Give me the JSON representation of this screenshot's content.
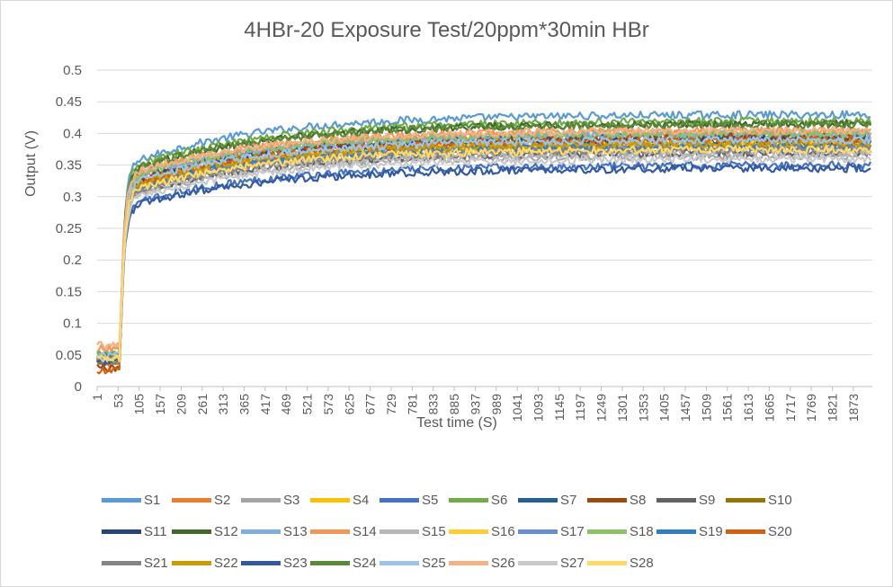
{
  "chart_data": {
    "type": "line",
    "title": "4HBr-20 Exposure Test/20ppm*30min HBr",
    "xlabel": "Test time (S)",
    "ylabel": "Output (V)",
    "ylim": [
      0,
      0.5
    ],
    "yticks": [
      "0",
      "0.05",
      "0.1",
      "0.15",
      "0.2",
      "0.25",
      "0.3",
      "0.35",
      "0.4",
      "0.45",
      "0.5"
    ],
    "x_tick_labels": [
      "1",
      "53",
      "105",
      "157",
      "209",
      "261",
      "313",
      "365",
      "417",
      "469",
      "521",
      "573",
      "625",
      "677",
      "729",
      "781",
      "833",
      "885",
      "937",
      "989",
      "1041",
      "1093",
      "1145",
      "1197",
      "1249",
      "1301",
      "1353",
      "1405",
      "1457",
      "1509",
      "1561",
      "1613",
      "1665",
      "1717",
      "1769",
      "1821",
      "1873"
    ],
    "x_range": [
      1,
      1920
    ],
    "exposure_start": 58,
    "grid": true,
    "legend_position": "bottom",
    "series": [
      {
        "name": "S1",
        "color": "#5B9BD5",
        "baseline": 0.05,
        "plateau": 0.43
      },
      {
        "name": "S2",
        "color": "#ED7D31",
        "baseline": 0.035,
        "plateau": 0.4
      },
      {
        "name": "S3",
        "color": "#A5A5A5",
        "baseline": 0.045,
        "plateau": 0.365
      },
      {
        "name": "S4",
        "color": "#FFC000",
        "baseline": 0.045,
        "plateau": 0.38
      },
      {
        "name": "S5",
        "color": "#4472C4",
        "baseline": 0.04,
        "plateau": 0.35
      },
      {
        "name": "S6",
        "color": "#70AD47",
        "baseline": 0.05,
        "plateau": 0.42
      },
      {
        "name": "S7",
        "color": "#255E91",
        "baseline": 0.045,
        "plateau": 0.395
      },
      {
        "name": "S8",
        "color": "#9E480E",
        "baseline": 0.03,
        "plateau": 0.395
      },
      {
        "name": "S9",
        "color": "#636363",
        "baseline": 0.04,
        "plateau": 0.37
      },
      {
        "name": "S10",
        "color": "#997300",
        "baseline": 0.04,
        "plateau": 0.385
      },
      {
        "name": "S11",
        "color": "#264478",
        "baseline": 0.04,
        "plateau": 0.39
      },
      {
        "name": "S12",
        "color": "#43682B",
        "baseline": 0.045,
        "plateau": 0.415
      },
      {
        "name": "S13",
        "color": "#7CAFDD",
        "baseline": 0.05,
        "plateau": 0.4
      },
      {
        "name": "S14",
        "color": "#F1975A",
        "baseline": 0.06,
        "plateau": 0.405
      },
      {
        "name": "S15",
        "color": "#B7B7B7",
        "baseline": 0.045,
        "plateau": 0.37
      },
      {
        "name": "S16",
        "color": "#FFCD33",
        "baseline": 0.045,
        "plateau": 0.385
      },
      {
        "name": "S17",
        "color": "#698ED0",
        "baseline": 0.045,
        "plateau": 0.38
      },
      {
        "name": "S18",
        "color": "#8CC168",
        "baseline": 0.05,
        "plateau": 0.4
      },
      {
        "name": "S19",
        "color": "#327DC2",
        "baseline": 0.045,
        "plateau": 0.38
      },
      {
        "name": "S20",
        "color": "#D26012",
        "baseline": 0.025,
        "plateau": 0.39
      },
      {
        "name": "S21",
        "color": "#848484",
        "baseline": 0.04,
        "plateau": 0.375
      },
      {
        "name": "S22",
        "color": "#CC9A00",
        "baseline": 0.045,
        "plateau": 0.385
      },
      {
        "name": "S23",
        "color": "#335AA1",
        "baseline": 0.04,
        "plateau": 0.345
      },
      {
        "name": "S24",
        "color": "#5A8A39",
        "baseline": 0.05,
        "plateau": 0.415
      },
      {
        "name": "S25",
        "color": "#9DC3E6",
        "baseline": 0.05,
        "plateau": 0.39
      },
      {
        "name": "S26",
        "color": "#F4B183",
        "baseline": 0.065,
        "plateau": 0.405
      },
      {
        "name": "S27",
        "color": "#C9C9C9",
        "baseline": 0.045,
        "plateau": 0.36
      },
      {
        "name": "S28",
        "color": "#FFD966",
        "baseline": 0.045,
        "plateau": 0.375
      }
    ]
  }
}
